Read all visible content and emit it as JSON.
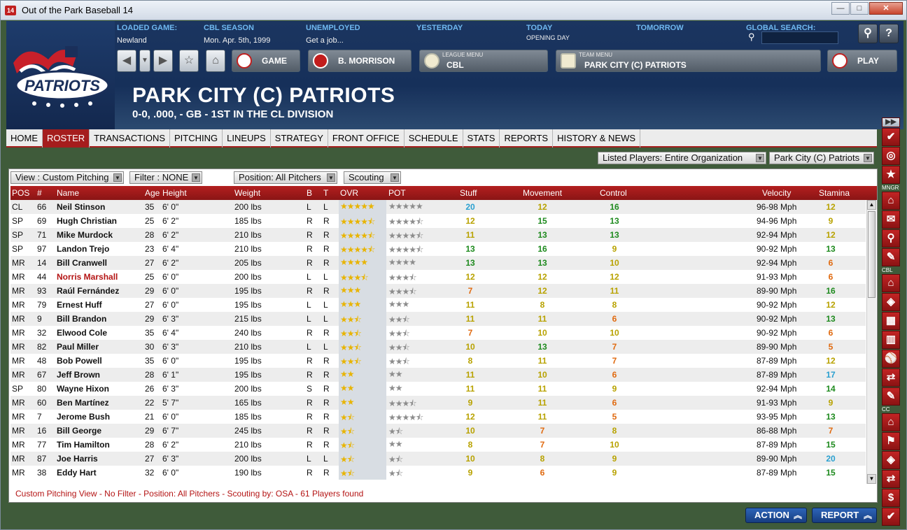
{
  "window": {
    "title": "Out of the Park Baseball 14",
    "app_icon": "14",
    "minimize": "—",
    "maximize": "□",
    "close": "✕"
  },
  "header": {
    "loaded_game": {
      "label": "LOADED GAME:",
      "value": "Newland"
    },
    "season": {
      "label": "CBL SEASON",
      "value": "Mon. Apr. 5th, 1999"
    },
    "unemployed": {
      "label": "UNEMPLOYED",
      "value": "Get a job..."
    },
    "yesterday": {
      "label": "YESTERDAY",
      "value": ""
    },
    "today": {
      "label": "TODAY",
      "value": "OPENING DAY"
    },
    "tomorrow": {
      "label": "TOMORROW",
      "value": ""
    },
    "global_search": {
      "label": "GLOBAL SEARCH:",
      "placeholder": ""
    },
    "logo_text": "PATRIOTS"
  },
  "toolbar": {
    "back": "◀",
    "dropdown": "▼",
    "forward": "▶",
    "favorite": "☆",
    "home": "⌂",
    "game": "GAME",
    "manager": "B. MORRISON",
    "league_menu_label": "LEAGUE MENU",
    "league": "CBL",
    "team_menu_label": "TEAM MENU",
    "team": "PARK CITY (C) PATRIOTS",
    "play": "PLAY",
    "search_icon": "🔍",
    "help": "?"
  },
  "team": {
    "name": "PARK CITY (C) PATRIOTS",
    "record": "0-0, .000, - GB - 1ST IN THE CL DIVISION"
  },
  "tabs": [
    "HOME",
    "ROSTER",
    "TRANSACTIONS",
    "PITCHING",
    "LINEUPS",
    "STRATEGY",
    "FRONT OFFICE",
    "SCHEDULE",
    "STATS",
    "REPORTS",
    "HISTORY & NEWS"
  ],
  "active_tab": "ROSTER",
  "filters": {
    "listed_players": "Listed Players: Entire Organization",
    "team_select": "Park City (C) Patriots",
    "view": "View : Custom Pitching",
    "filter": "Filter : NONE",
    "position": "Position: All Pitchers",
    "scouting": "Scouting"
  },
  "columns": {
    "pos": "POS",
    "num": "#",
    "name": "Name",
    "age": "Age",
    "height": "Height",
    "weight": "Weight",
    "b": "B",
    "t": "T",
    "ovr": "OVR",
    "pot": "POT",
    "stuff": "Stuff",
    "movement": "Movement",
    "control": "Control",
    "velocity": "Velocity",
    "stamina": "Stamina"
  },
  "rating_colors": {
    "5": "#e06a10",
    "6": "#e06a10",
    "7": "#e06a10",
    "8": "#b8a200",
    "9": "#b8a200",
    "10": "#b8a200",
    "11": "#b8a200",
    "12": "#b8a200",
    "13": "#1e8a1e",
    "14": "#1e8a1e",
    "15": "#1e8a1e",
    "16": "#1e8a1e",
    "17": "#2aa0d0",
    "20": "#2aa0d0"
  },
  "players": [
    {
      "pos": "CL",
      "num": "66",
      "name": "Neil Stinson",
      "age": "35",
      "height": "6' 0\"",
      "weight": "200 lbs",
      "b": "L",
      "t": "L",
      "ovr": 5,
      "pot": 5,
      "stuff": 20,
      "movement": 12,
      "control": 16,
      "velocity": "96-98 Mph",
      "stamina": 12
    },
    {
      "pos": "SP",
      "num": "69",
      "name": "Hugh Christian",
      "age": "25",
      "height": "6' 2\"",
      "weight": "185 lbs",
      "b": "R",
      "t": "R",
      "ovr": 4.5,
      "pot": 4.5,
      "stuff": 12,
      "movement": 15,
      "control": 13,
      "velocity": "94-96 Mph",
      "stamina": 9
    },
    {
      "pos": "SP",
      "num": "71",
      "name": "Mike Murdock",
      "age": "28",
      "height": "6' 2\"",
      "weight": "210 lbs",
      "b": "R",
      "t": "R",
      "ovr": 4.5,
      "pot": 4.5,
      "stuff": 11,
      "movement": 13,
      "control": 13,
      "velocity": "92-94 Mph",
      "stamina": 12
    },
    {
      "pos": "SP",
      "num": "97",
      "name": "Landon Trejo",
      "age": "23",
      "height": "6' 4\"",
      "weight": "210 lbs",
      "b": "R",
      "t": "R",
      "ovr": 4.5,
      "pot": 4.5,
      "stuff": 13,
      "movement": 16,
      "control": 9,
      "velocity": "90-92 Mph",
      "stamina": 13
    },
    {
      "pos": "MR",
      "num": "14",
      "name": "Bill Cranwell",
      "age": "27",
      "height": "6' 2\"",
      "weight": "205 lbs",
      "b": "R",
      "t": "R",
      "ovr": 4,
      "pot": 4,
      "stuff": 13,
      "movement": 13,
      "control": 10,
      "velocity": "92-94 Mph",
      "stamina": 6
    },
    {
      "pos": "MR",
      "num": "44",
      "name": "Norris Marshall",
      "age": "25",
      "height": "6' 0\"",
      "weight": "200 lbs",
      "b": "L",
      "t": "L",
      "ovr": 3.5,
      "pot": 3.5,
      "stuff": 12,
      "movement": 12,
      "control": 12,
      "velocity": "91-93 Mph",
      "stamina": 6,
      "highlight": true
    },
    {
      "pos": "MR",
      "num": "93",
      "name": "Raúl Fernández",
      "age": "29",
      "height": "6' 0\"",
      "weight": "195 lbs",
      "b": "R",
      "t": "R",
      "ovr": 3,
      "pot": 3.5,
      "stuff": 7,
      "movement": 12,
      "control": 11,
      "velocity": "89-90 Mph",
      "stamina": 16
    },
    {
      "pos": "MR",
      "num": "79",
      "name": "Ernest Huff",
      "age": "27",
      "height": "6' 0\"",
      "weight": "195 lbs",
      "b": "L",
      "t": "L",
      "ovr": 3,
      "pot": 3,
      "stuff": 11,
      "movement": 8,
      "control": 8,
      "velocity": "90-92 Mph",
      "stamina": 12
    },
    {
      "pos": "MR",
      "num": "9",
      "name": "Bill Brandon",
      "age": "29",
      "height": "6' 3\"",
      "weight": "215 lbs",
      "b": "L",
      "t": "L",
      "ovr": 2.5,
      "pot": 2.5,
      "stuff": 11,
      "movement": 11,
      "control": 6,
      "velocity": "90-92 Mph",
      "stamina": 13
    },
    {
      "pos": "MR",
      "num": "32",
      "name": "Elwood Cole",
      "age": "35",
      "height": "6' 4\"",
      "weight": "240 lbs",
      "b": "R",
      "t": "R",
      "ovr": 2.5,
      "pot": 2.5,
      "stuff": 7,
      "movement": 10,
      "control": 10,
      "velocity": "90-92 Mph",
      "stamina": 6
    },
    {
      "pos": "MR",
      "num": "82",
      "name": "Paul Miller",
      "age": "30",
      "height": "6' 3\"",
      "weight": "210 lbs",
      "b": "L",
      "t": "L",
      "ovr": 2.5,
      "pot": 2.5,
      "stuff": 10,
      "movement": 13,
      "control": 7,
      "velocity": "89-90 Mph",
      "stamina": 5
    },
    {
      "pos": "MR",
      "num": "48",
      "name": "Bob Powell",
      "age": "35",
      "height": "6' 0\"",
      "weight": "195 lbs",
      "b": "R",
      "t": "R",
      "ovr": 2.5,
      "pot": 2.5,
      "stuff": 8,
      "movement": 11,
      "control": 7,
      "velocity": "87-89 Mph",
      "stamina": 12
    },
    {
      "pos": "MR",
      "num": "67",
      "name": "Jeff Brown",
      "age": "28",
      "height": "6' 1\"",
      "weight": "195 lbs",
      "b": "R",
      "t": "R",
      "ovr": 2,
      "pot": 2,
      "stuff": 11,
      "movement": 10,
      "control": 6,
      "velocity": "87-89 Mph",
      "stamina": 17
    },
    {
      "pos": "SP",
      "num": "80",
      "name": "Wayne Hixon",
      "age": "26",
      "height": "6' 3\"",
      "weight": "200 lbs",
      "b": "S",
      "t": "R",
      "ovr": 2,
      "pot": 2,
      "stuff": 11,
      "movement": 11,
      "control": 9,
      "velocity": "92-94 Mph",
      "stamina": 14
    },
    {
      "pos": "MR",
      "num": "60",
      "name": "Ben Martínez",
      "age": "22",
      "height": "5' 7\"",
      "weight": "165 lbs",
      "b": "R",
      "t": "R",
      "ovr": 2,
      "pot": 3.5,
      "stuff": 9,
      "movement": 11,
      "control": 6,
      "velocity": "91-93 Mph",
      "stamina": 9
    },
    {
      "pos": "MR",
      "num": "7",
      "name": "Jerome Bush",
      "age": "21",
      "height": "6' 0\"",
      "weight": "185 lbs",
      "b": "R",
      "t": "R",
      "ovr": 1.5,
      "pot": 4.5,
      "stuff": 12,
      "movement": 11,
      "control": 5,
      "velocity": "93-95 Mph",
      "stamina": 13
    },
    {
      "pos": "MR",
      "num": "16",
      "name": "Bill George",
      "age": "29",
      "height": "6' 7\"",
      "weight": "245 lbs",
      "b": "R",
      "t": "R",
      "ovr": 1.5,
      "pot": 1.5,
      "stuff": 10,
      "movement": 7,
      "control": 8,
      "velocity": "86-88 Mph",
      "stamina": 7
    },
    {
      "pos": "MR",
      "num": "77",
      "name": "Tim Hamilton",
      "age": "28",
      "height": "6' 2\"",
      "weight": "210 lbs",
      "b": "R",
      "t": "R",
      "ovr": 1.5,
      "pot": 2,
      "stuff": 8,
      "movement": 7,
      "control": 10,
      "velocity": "87-89 Mph",
      "stamina": 15
    },
    {
      "pos": "MR",
      "num": "87",
      "name": "Joe Harris",
      "age": "27",
      "height": "6' 3\"",
      "weight": "200 lbs",
      "b": "L",
      "t": "L",
      "ovr": 1.5,
      "pot": 1.5,
      "stuff": 10,
      "movement": 8,
      "control": 9,
      "velocity": "89-90 Mph",
      "stamina": 20
    },
    {
      "pos": "MR",
      "num": "38",
      "name": "Eddy Hart",
      "age": "32",
      "height": "6' 0\"",
      "weight": "190 lbs",
      "b": "R",
      "t": "R",
      "ovr": 1.5,
      "pot": 1.5,
      "stuff": 9,
      "movement": 6,
      "control": 9,
      "velocity": "87-89 Mph",
      "stamina": 15
    }
  ],
  "status": "Custom Pitching View - No Filter - Position: All Pitchers - Scouting by: OSA - 61 Players found",
  "bottom": {
    "action": "ACTION",
    "report": "REPORT"
  },
  "sidebar": {
    "labels": [
      "MNGR",
      "CBL",
      "CC"
    ],
    "icons": [
      "▶▶",
      "✔",
      "◎",
      "★",
      "⌂",
      "✉",
      "⚲",
      "✎",
      "⌂",
      "◈",
      "▦",
      "▥",
      "⚾",
      "⇄",
      "✎",
      "⌂",
      "⚑",
      "◈",
      "⇄",
      "$",
      "✔"
    ]
  }
}
